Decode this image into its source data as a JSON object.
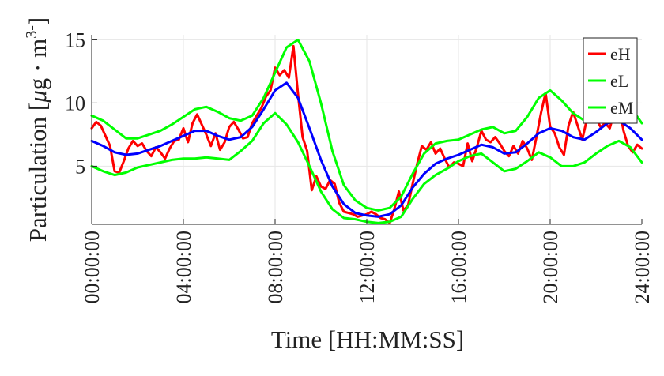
{
  "chart_data": {
    "type": "line",
    "xlabel": "Time [HH:MM:SS]",
    "ylabel_main": "Particulation [",
    "ylabel_mu": "μ",
    "ylabel_rest": "g · m",
    "ylabel_sup": "3",
    "ylabel_sup_sign": "-",
    "ylabel_end": "]",
    "xlim": [
      0,
      24
    ],
    "ylim": [
      0.4,
      15.4
    ],
    "x_ticks": [
      0,
      4,
      8,
      12,
      16,
      20,
      24
    ],
    "x_tick_labels": [
      "00:00:00",
      "04:00:00",
      "08:00:00",
      "12:00:00",
      "16:00:00",
      "20:00:00",
      "24:00:00"
    ],
    "y_ticks": [
      5,
      10,
      15
    ],
    "y_tick_labels": [
      "5",
      "10",
      "15"
    ],
    "grid": true,
    "legend_position": "top-right",
    "legend": [
      {
        "label": "eH",
        "color": "#ff0000"
      },
      {
        "label": "eL",
        "color": "#00ff00"
      },
      {
        "label": "eM",
        "color": "#00ff00"
      }
    ],
    "series": [
      {
        "name": "eH",
        "color": "#ff0000",
        "x": [
          0.0,
          0.2,
          0.4,
          0.6,
          0.8,
          1.0,
          1.2,
          1.4,
          1.6,
          1.8,
          2.0,
          2.2,
          2.4,
          2.6,
          2.8,
          3.0,
          3.2,
          3.4,
          3.6,
          3.8,
          4.0,
          4.2,
          4.4,
          4.6,
          4.8,
          5.0,
          5.2,
          5.4,
          5.6,
          5.8,
          6.0,
          6.2,
          6.4,
          6.6,
          6.8,
          7.0,
          7.2,
          7.4,
          7.6,
          7.8,
          8.0,
          8.2,
          8.4,
          8.6,
          8.8,
          9.0,
          9.2,
          9.4,
          9.6,
          9.8,
          10.0,
          10.2,
          10.4,
          10.6,
          10.8,
          11.0,
          11.2,
          11.4,
          11.6,
          11.8,
          12.0,
          12.2,
          12.4,
          12.6,
          12.8,
          13.0,
          13.2,
          13.4,
          13.6,
          13.8,
          14.0,
          14.2,
          14.4,
          14.6,
          14.8,
          15.0,
          15.2,
          15.4,
          15.6,
          15.8,
          16.0,
          16.2,
          16.4,
          16.6,
          16.8,
          17.0,
          17.2,
          17.4,
          17.6,
          17.8,
          18.0,
          18.2,
          18.4,
          18.6,
          18.8,
          19.0,
          19.2,
          19.4,
          19.6,
          19.8,
          20.0,
          20.2,
          20.4,
          20.6,
          20.8,
          21.0,
          21.2,
          21.4,
          21.6,
          21.8,
          22.0,
          22.2,
          22.4,
          22.6,
          22.8,
          23.0,
          23.2,
          23.4,
          23.6,
          23.8,
          24.0
        ],
        "values": [
          8.0,
          8.5,
          8.2,
          7.4,
          6.6,
          4.6,
          4.5,
          5.4,
          6.4,
          7.0,
          6.6,
          6.8,
          6.2,
          5.8,
          6.5,
          6.1,
          5.6,
          6.4,
          7.0,
          7.1,
          8.0,
          6.9,
          8.4,
          9.1,
          8.3,
          7.5,
          6.6,
          7.6,
          6.3,
          6.9,
          8.1,
          8.5,
          7.9,
          7.2,
          7.3,
          8.4,
          9.0,
          9.6,
          10.5,
          11.0,
          12.8,
          12.2,
          12.6,
          12.0,
          14.5,
          10.7,
          7.3,
          6.2,
          3.1,
          4.2,
          3.4,
          3.2,
          3.9,
          3.6,
          2.1,
          1.4,
          1.3,
          1.2,
          1.0,
          1.1,
          1.2,
          1.4,
          1.2,
          0.9,
          0.8,
          0.5,
          1.6,
          3.0,
          1.5,
          1.9,
          3.6,
          5.2,
          6.6,
          6.3,
          6.9,
          6.0,
          6.4,
          5.6,
          4.9,
          5.3,
          5.2,
          5.0,
          6.8,
          5.4,
          6.5,
          7.8,
          7.1,
          6.9,
          7.3,
          6.8,
          6.2,
          5.8,
          6.6,
          6.0,
          7.0,
          6.4,
          5.5,
          7.3,
          9.2,
          10.8,
          8.1,
          7.6,
          6.5,
          5.9,
          8.2,
          9.3,
          8.2,
          7.1,
          8.7,
          9.2,
          8.8,
          8.1,
          8.4,
          8.0,
          9.3,
          9.8,
          7.8,
          6.6,
          6.1,
          6.7,
          6.4
        ]
      },
      {
        "name": "eL",
        "color": "#00ff00",
        "x": [
          0.0,
          0.5,
          1.0,
          1.5,
          2.0,
          2.5,
          3.0,
          3.5,
          4.0,
          4.5,
          5.0,
          5.5,
          6.0,
          6.5,
          7.0,
          7.5,
          8.0,
          8.5,
          9.0,
          9.5,
          10.0,
          10.5,
          11.0,
          11.5,
          12.0,
          12.5,
          13.0,
          13.5,
          14.0,
          14.5,
          15.0,
          15.5,
          16.0,
          16.5,
          17.0,
          17.5,
          18.0,
          18.5,
          19.0,
          19.5,
          20.0,
          20.5,
          21.0,
          21.5,
          22.0,
          22.5,
          23.0,
          23.5,
          24.0
        ],
        "values": [
          5.0,
          4.6,
          4.3,
          4.5,
          4.9,
          5.1,
          5.3,
          5.5,
          5.6,
          5.6,
          5.7,
          5.6,
          5.5,
          6.2,
          7.0,
          8.4,
          9.2,
          8.3,
          6.9,
          5.0,
          3.0,
          1.6,
          0.9,
          0.8,
          0.6,
          0.5,
          0.6,
          1.0,
          2.4,
          3.6,
          4.3,
          4.8,
          5.4,
          5.8,
          6.0,
          5.3,
          4.6,
          4.8,
          5.4,
          6.1,
          5.7,
          5.0,
          5.0,
          5.3,
          6.0,
          6.6,
          7.0,
          6.5,
          5.3
        ]
      },
      {
        "name": "eM",
        "color": "#00ff00",
        "x": [
          0.0,
          0.5,
          1.0,
          1.5,
          2.0,
          2.5,
          3.0,
          3.5,
          4.0,
          4.5,
          5.0,
          5.5,
          6.0,
          6.5,
          7.0,
          7.5,
          8.0,
          8.5,
          9.0,
          9.5,
          10.0,
          10.5,
          11.0,
          11.5,
          12.0,
          12.5,
          13.0,
          13.5,
          14.0,
          14.5,
          15.0,
          15.5,
          16.0,
          16.5,
          17.0,
          17.5,
          18.0,
          18.5,
          19.0,
          19.5,
          20.0,
          20.5,
          21.0,
          21.5,
          22.0,
          22.5,
          23.0,
          23.5,
          24.0
        ],
        "values": [
          9.0,
          8.6,
          7.9,
          7.2,
          7.2,
          7.5,
          7.8,
          8.3,
          8.9,
          9.5,
          9.7,
          9.3,
          8.8,
          8.6,
          9.0,
          10.4,
          12.4,
          14.4,
          15.0,
          13.3,
          10.0,
          6.2,
          3.5,
          2.3,
          1.7,
          1.5,
          1.7,
          2.6,
          4.4,
          6.0,
          6.8,
          7.0,
          7.1,
          7.5,
          7.9,
          8.1,
          7.6,
          7.8,
          8.9,
          10.4,
          11.0,
          10.2,
          9.2,
          8.6,
          9.8,
          10.9,
          10.8,
          9.7,
          8.4
        ]
      },
      {
        "name": "",
        "color": "#0000ff",
        "x": [
          0.0,
          0.5,
          1.0,
          1.5,
          2.0,
          2.5,
          3.0,
          3.5,
          4.0,
          4.5,
          5.0,
          5.5,
          6.0,
          6.5,
          7.0,
          7.5,
          8.0,
          8.5,
          9.0,
          9.5,
          10.0,
          10.5,
          11.0,
          11.5,
          12.0,
          12.5,
          13.0,
          13.5,
          14.0,
          14.5,
          15.0,
          15.5,
          16.0,
          16.5,
          17.0,
          17.5,
          18.0,
          18.5,
          19.0,
          19.5,
          20.0,
          20.5,
          21.0,
          21.5,
          22.0,
          22.5,
          23.0,
          23.5,
          24.0
        ],
        "values": [
          7.0,
          6.6,
          6.1,
          5.9,
          6.0,
          6.3,
          6.6,
          7.0,
          7.4,
          7.8,
          7.8,
          7.4,
          7.1,
          7.3,
          8.1,
          9.5,
          11.0,
          11.6,
          10.4,
          8.0,
          5.5,
          3.4,
          2.0,
          1.3,
          1.1,
          1.0,
          1.2,
          1.9,
          3.3,
          4.4,
          5.2,
          5.6,
          5.9,
          6.3,
          6.7,
          6.5,
          6.0,
          6.1,
          6.8,
          7.6,
          8.0,
          7.8,
          7.3,
          7.1,
          7.7,
          8.4,
          8.6,
          8.0,
          7.1
        ]
      }
    ]
  }
}
